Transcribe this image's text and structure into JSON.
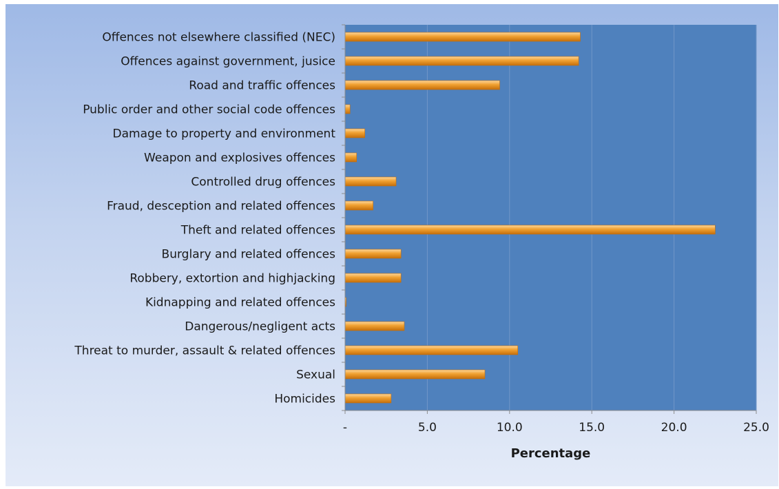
{
  "chart_data": {
    "type": "bar",
    "orientation": "horizontal",
    "categories": [
      "Offences not elsewhere classified (NEC)",
      "Offences against government, jusice",
      "Road and traffic offences",
      "Public order and other social  code offences",
      "Damage to property and environment",
      "Weapon and explosives offences",
      "Controlled drug offences",
      "Fraud, desception and related offences",
      "Theft and related offences",
      "Burglary and related offences",
      "Robbery, extortion and highjacking",
      "Kidnapping and related offences",
      "Dangerous/negligent acts",
      "Threat to murder, assault & related offences",
      "Sexual",
      "Homicides"
    ],
    "values": [
      14.3,
      14.2,
      9.4,
      0.3,
      1.2,
      0.7,
      3.1,
      1.7,
      22.5,
      3.4,
      3.4,
      0.05,
      3.6,
      10.5,
      8.5,
      2.8
    ],
    "xlabel": "Percentage",
    "xlim": [
      0,
      25
    ],
    "xticks": [
      0,
      5,
      10,
      15,
      20,
      25
    ],
    "xtick_labels": [
      "-",
      "5.0",
      "10.0",
      "15.0",
      "20.0",
      "25.0"
    ],
    "grid": "vertical",
    "colors": {
      "plot_bg": "#4f81bd",
      "bar": "#f0a030",
      "bar_light": "#fcd69a",
      "bar_dark": "#c46e0c",
      "gridline": "#7196c8",
      "axis": "#8c8c8c"
    }
  }
}
